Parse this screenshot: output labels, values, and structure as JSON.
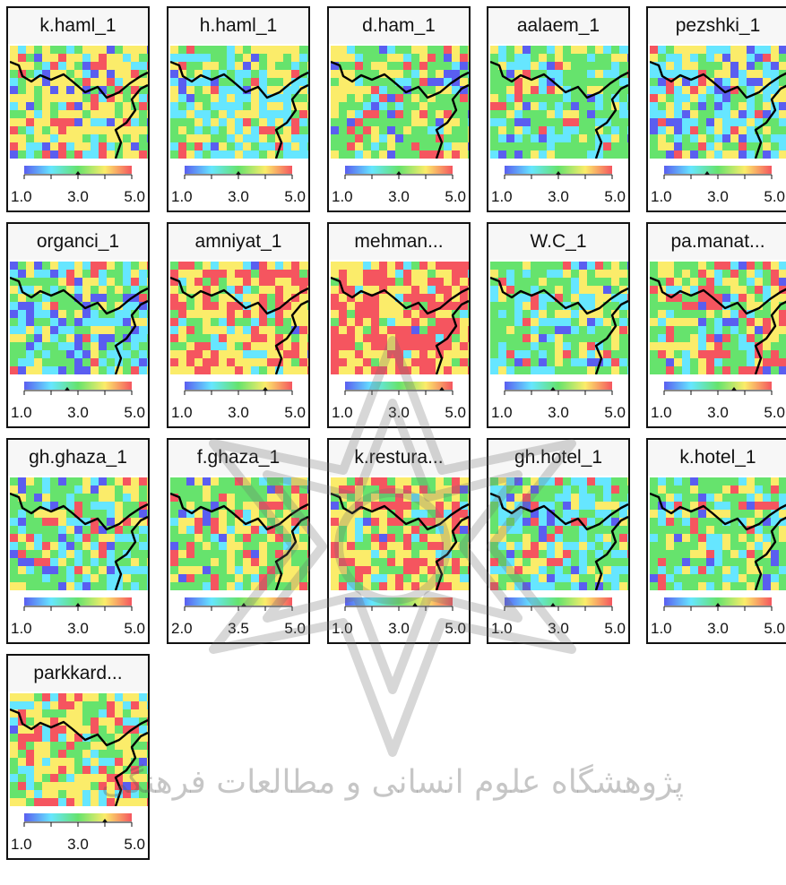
{
  "colors": {
    "blue": "#5a5ef0",
    "cyan": "#66e6ff",
    "green": "#66e36d",
    "yellow": "#fbec6a",
    "red": "#f5555f",
    "boundary": "#000000"
  },
  "icons": {
    "watermark": "institutional-emblem-watermark"
  },
  "watermark_text": "پژوهشگاه علوم انسانی و مطالعات فرهنگی",
  "maps": [
    {
      "title": "k.haml_1",
      "scale_labels": [
        "1.0",
        "3.0",
        "5.0"
      ],
      "scale_marker": 0.5,
      "palette": {
        "blue": 8,
        "cyan": 14,
        "green": 22,
        "yellow": 44,
        "red": 12
      }
    },
    {
      "title": "h.haml_1",
      "scale_labels": [
        "1.0",
        "3.0",
        "5.0"
      ],
      "scale_marker": 0.5,
      "palette": {
        "blue": 4,
        "cyan": 35,
        "green": 26,
        "yellow": 28,
        "red": 7
      }
    },
    {
      "title": "d.ham_1",
      "scale_labels": [
        "1.0",
        "3.0",
        "5.0"
      ],
      "scale_marker": 0.5,
      "palette": {
        "blue": 8,
        "cyan": 14,
        "green": 44,
        "yellow": 24,
        "red": 10
      }
    },
    {
      "title": "aalaem_1",
      "scale_labels": [
        "1.0",
        "3.0",
        "5.0"
      ],
      "scale_marker": 0.5,
      "palette": {
        "blue": 5,
        "cyan": 18,
        "green": 50,
        "yellow": 20,
        "red": 7
      }
    },
    {
      "title": "pezshki_1",
      "scale_labels": [
        "1.0",
        "3.0",
        "5.0"
      ],
      "scale_marker": 0.4,
      "palette": {
        "blue": 18,
        "cyan": 28,
        "green": 24,
        "yellow": 22,
        "red": 8
      }
    },
    {
      "title": "organci_1",
      "scale_labels": [
        "1.0",
        "3.0",
        "5.0"
      ],
      "scale_marker": 0.4,
      "palette": {
        "blue": 14,
        "cyan": 34,
        "green": 28,
        "yellow": 16,
        "red": 8
      }
    },
    {
      "title": "amniyat_1",
      "scale_labels": [
        "1.0",
        "3.0",
        "5.0"
      ],
      "scale_marker": 0.75,
      "palette": {
        "blue": 2,
        "cyan": 8,
        "green": 16,
        "yellow": 42,
        "red": 32
      }
    },
    {
      "title": "mehman...",
      "scale_labels": [
        "1.0",
        "3.0",
        "5.0"
      ],
      "scale_marker": 0.9,
      "palette": {
        "blue": 1,
        "cyan": 4,
        "green": 8,
        "yellow": 32,
        "red": 55
      }
    },
    {
      "title": "W.C_1",
      "scale_labels": [
        "1.0",
        "3.0",
        "5.0"
      ],
      "scale_marker": 0.45,
      "palette": {
        "blue": 4,
        "cyan": 20,
        "green": 48,
        "yellow": 22,
        "red": 6
      }
    },
    {
      "title": "pa.manat...",
      "scale_labels": [
        "1.0",
        "3.0",
        "5.0"
      ],
      "scale_marker": 0.65,
      "palette": {
        "blue": 8,
        "cyan": 14,
        "green": 32,
        "yellow": 28,
        "red": 18
      }
    },
    {
      "title": "gh.ghaza_1",
      "scale_labels": [
        "1.0",
        "3.0",
        "5.0"
      ],
      "scale_marker": 0.5,
      "palette": {
        "blue": 10,
        "cyan": 22,
        "green": 40,
        "yellow": 20,
        "red": 8
      }
    },
    {
      "title": "f.ghaza_1",
      "scale_labels": [
        "2.0",
        "3.5",
        "5.0"
      ],
      "scale_marker": 0.55,
      "palette": {
        "blue": 5,
        "cyan": 12,
        "green": 36,
        "yellow": 32,
        "red": 15
      }
    },
    {
      "title": "k.restura...",
      "scale_labels": [
        "1.0",
        "3.0",
        "5.0"
      ],
      "scale_marker": 0.65,
      "palette": {
        "blue": 4,
        "cyan": 8,
        "green": 24,
        "yellow": 40,
        "red": 24
      }
    },
    {
      "title": "gh.hotel_1",
      "scale_labels": [
        "1.0",
        "3.0",
        "5.0"
      ],
      "scale_marker": 0.45,
      "palette": {
        "blue": 10,
        "cyan": 34,
        "green": 38,
        "yellow": 12,
        "red": 6
      }
    },
    {
      "title": "k.hotel_1",
      "scale_labels": [
        "1.0",
        "3.0",
        "5.0"
      ],
      "scale_marker": 0.5,
      "palette": {
        "blue": 6,
        "cyan": 18,
        "green": 46,
        "yellow": 20,
        "red": 10
      }
    },
    {
      "title": "parkkard...",
      "scale_labels": [
        "1.0",
        "3.0",
        "5.0"
      ],
      "scale_marker": 0.75,
      "palette": {
        "blue": 3,
        "cyan": 16,
        "green": 20,
        "yellow": 44,
        "red": 17
      }
    }
  ]
}
